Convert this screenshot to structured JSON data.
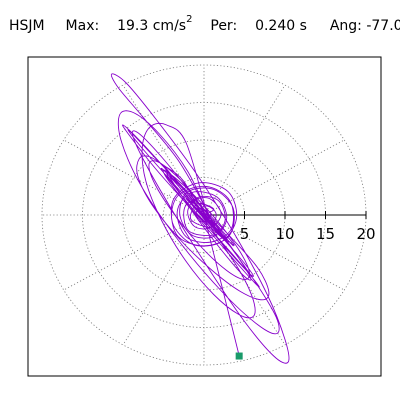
{
  "header": {
    "station": "HSJM",
    "max_label": "Max:",
    "max_value": "19.3",
    "max_unit_base": "cm/s",
    "max_unit_exp": "2",
    "per_label": "Per:",
    "per_value": "0.240 s",
    "ang_label": "Ang:",
    "ang_value": "-77.0"
  },
  "chart_data": {
    "type": "line",
    "subtype": "polar-particle-motion",
    "title": "",
    "radial_ticks": [
      {
        "value": 5,
        "label": "5"
      },
      {
        "value": 10,
        "label": "10"
      },
      {
        "value": 15,
        "label": "15"
      },
      {
        "value": 20,
        "label": "20"
      }
    ],
    "radial_range": [
      0,
      20
    ],
    "grid": true,
    "series_color": "#8800cc",
    "marker_color": "#1a9a6a",
    "angle_marker_deg": -77.0,
    "max_marker_radius": 19.3,
    "path": [
      [
        0,
        0
      ],
      [
        1.2,
        0.8
      ],
      [
        -0.8,
        1.5
      ],
      [
        -1.6,
        -0.6
      ],
      [
        0.9,
        -1.6
      ],
      [
        2.1,
        0.3
      ],
      [
        0.4,
        2.3
      ],
      [
        -2.3,
        1.2
      ],
      [
        -1.9,
        -2.1
      ],
      [
        1.4,
        -2.6
      ],
      [
        2.8,
        -0.4
      ],
      [
        1.6,
        2.4
      ],
      [
        -1.5,
        3.0
      ],
      [
        -3.3,
        0.5
      ],
      [
        -2.2,
        -2.9
      ],
      [
        0.9,
        -3.6
      ],
      [
        3.4,
        -1.8
      ],
      [
        3.2,
        1.9
      ],
      [
        0.3,
        3.8
      ],
      [
        -3.2,
        2.6
      ],
      [
        -3.9,
        -1.0
      ],
      [
        -1.4,
        -3.9
      ],
      [
        2.1,
        -3.6
      ],
      [
        4.0,
        -0.5
      ],
      [
        3.0,
        3.1
      ],
      [
        -0.6,
        4.3
      ],
      [
        -3.8,
        2.0
      ],
      [
        -3.4,
        -2.6
      ],
      [
        -0.1,
        -4.1
      ],
      [
        3.1,
        -2.8
      ],
      [
        3.6,
        0.9
      ],
      [
        1.2,
        3.4
      ],
      [
        -2.0,
        3.1
      ],
      [
        -3.0,
        0.2
      ],
      [
        -1.6,
        -2.6
      ],
      [
        1.1,
        -2.9
      ],
      [
        2.6,
        -0.7
      ],
      [
        1.8,
        1.9
      ],
      [
        -0.6,
        2.4
      ],
      [
        -2.0,
        0.6
      ],
      [
        -1.2,
        -1.5
      ],
      [
        0.7,
        -1.7
      ],
      [
        1.5,
        0.1
      ],
      [
        0.4,
        1.2
      ],
      [
        -0.9,
        0.5
      ],
      [
        -0.6,
        -0.8
      ],
      [
        0.5,
        -0.7
      ],
      [
        0.8,
        0.3
      ],
      [
        0.0,
        0.6
      ],
      [
        -0.3,
        0.0
      ],
      [
        -2.5,
        4.5
      ],
      [
        -4.8,
        6.5
      ],
      [
        -6.8,
        7.8
      ],
      [
        -8.0,
        7.5
      ],
      [
        -8.2,
        5.3
      ],
      [
        -6.5,
        1.5
      ],
      [
        -3.2,
        -3.0
      ],
      [
        0.8,
        -7.2
      ],
      [
        4.5,
        -10.2
      ],
      [
        7.2,
        -11.3
      ],
      [
        8.0,
        -10.2
      ],
      [
        6.6,
        -7.0
      ],
      [
        3.0,
        -2.6
      ],
      [
        -1.8,
        2.8
      ],
      [
        -6.2,
        7.8
      ],
      [
        -8.8,
        10.8
      ],
      [
        -9.3,
        11.2
      ],
      [
        -7.4,
        8.6
      ],
      [
        -3.6,
        4.0
      ],
      [
        0.6,
        -1.0
      ],
      [
        4.2,
        -5.4
      ],
      [
        6.0,
        -7.9
      ],
      [
        5.6,
        -7.8
      ],
      [
        3.2,
        -5.0
      ],
      [
        -0.3,
        -0.6
      ],
      [
        -3.5,
        3.6
      ],
      [
        -5.2,
        6.0
      ],
      [
        -4.8,
        5.8
      ],
      [
        -2.6,
        3.2
      ],
      [
        0.2,
        -0.2
      ],
      [
        2.6,
        -3.0
      ],
      [
        3.6,
        -4.1
      ],
      [
        2.8,
        -3.2
      ],
      [
        0.8,
        -1.0
      ],
      [
        -1.2,
        1.1
      ],
      [
        -2.2,
        2.2
      ],
      [
        -1.8,
        1.7
      ],
      [
        -0.4,
        0.3
      ],
      [
        1.0,
        -0.9
      ],
      [
        1.5,
        -1.2
      ],
      [
        0.8,
        -0.5
      ],
      [
        -2.0,
        5.8
      ],
      [
        -5.5,
        10.8
      ],
      [
        -8.6,
        13.6
      ],
      [
        -10.4,
        13.4
      ],
      [
        -10.2,
        9.8
      ],
      [
        -7.6,
        3.6
      ],
      [
        -3.0,
        -3.6
      ],
      [
        2.2,
        -10.2
      ],
      [
        6.6,
        -14.6
      ],
      [
        9.0,
        -15.8
      ],
      [
        8.9,
        -13.6
      ],
      [
        6.0,
        -8.4
      ],
      [
        1.4,
        -1.6
      ],
      [
        -3.8,
        5.0
      ],
      [
        -8.0,
        10.0
      ],
      [
        -10.0,
        12.0
      ],
      [
        -9.2,
        10.6
      ],
      [
        -6.0,
        6.2
      ],
      [
        -1.4,
        0.6
      ],
      [
        3.0,
        -4.6
      ],
      [
        6.0,
        -8.4
      ],
      [
        6.8,
        -9.6
      ],
      [
        5.2,
        -7.8
      ],
      [
        1.8,
        -3.6
      ],
      [
        -1.8,
        1.0
      ],
      [
        -4.4,
        4.6
      ],
      [
        -5.0,
        6.0
      ],
      [
        -3.6,
        4.8
      ],
      [
        -0.8,
        1.6
      ],
      [
        2.0,
        -1.8
      ],
      [
        3.6,
        -3.8
      ],
      [
        3.4,
        -3.8
      ],
      [
        1.6,
        -2.0
      ],
      [
        -0.6,
        0.4
      ],
      [
        -2.0,
        2.0
      ],
      [
        -2.0,
        2.0
      ],
      [
        -0.8,
        0.8
      ],
      [
        0.6,
        -0.6
      ],
      [
        1.2,
        -1.2
      ],
      [
        -3.0,
        7.0
      ],
      [
        -7.5,
        13.0
      ],
      [
        -10.6,
        17.0
      ],
      [
        -11.4,
        18.8
      ],
      [
        -9.6,
        17.6
      ],
      [
        -5.8,
        12.6
      ],
      [
        -1.0,
        5.6
      ],
      [
        3.8,
        -2.6
      ],
      [
        7.8,
        -10.6
      ],
      [
        10.0,
        -16.6
      ],
      [
        10.4,
        -19.6
      ],
      [
        8.6,
        -18.8
      ],
      [
        5.0,
        -14.2
      ],
      [
        0.6,
        -7.2
      ],
      [
        -3.8,
        0.4
      ],
      [
        -7.2,
        6.8
      ],
      [
        -8.8,
        10.6
      ],
      [
        -8.2,
        11.0
      ],
      [
        -5.6,
        8.2
      ],
      [
        -1.8,
        3.2
      ],
      [
        2.0,
        -2.2
      ],
      [
        4.8,
        -6.6
      ],
      [
        5.8,
        -8.6
      ],
      [
        4.8,
        -8.0
      ],
      [
        2.4,
        -5.0
      ],
      [
        -0.6,
        -0.8
      ],
      [
        -3.0,
        3.0
      ],
      [
        -4.2,
        5.0
      ],
      [
        -3.8,
        4.8
      ],
      [
        -2.0,
        2.8
      ],
      [
        0.2,
        0.0
      ],
      [
        1.8,
        -2.2
      ],
      [
        2.4,
        -3.0
      ],
      [
        1.8,
        -2.4
      ],
      [
        0.4,
        -0.8
      ],
      [
        -0.8,
        0.6
      ],
      [
        -1.4,
        1.2
      ],
      [
        -1.0,
        1.0
      ],
      [
        -0.2,
        0.2
      ],
      [
        0.4,
        -0.4
      ],
      [
        -1.5,
        3.0
      ],
      [
        -4.0,
        5.8
      ],
      [
        -6.0,
        7.2
      ],
      [
        -6.8,
        6.6
      ],
      [
        -6.0,
        4.0
      ],
      [
        -3.6,
        0.0
      ],
      [
        -0.4,
        -4.2
      ],
      [
        2.8,
        -7.4
      ],
      [
        5.0,
        -8.6
      ],
      [
        5.6,
        -7.6
      ],
      [
        4.4,
        -4.8
      ],
      [
        1.8,
        -1.0
      ],
      [
        -1.2,
        2.6
      ],
      [
        -3.6,
        5.0
      ],
      [
        -4.6,
        5.6
      ],
      [
        -4.0,
        4.4
      ],
      [
        -2.2,
        1.8
      ],
      [
        0.2,
        -1.0
      ],
      [
        2.2,
        -3.0
      ],
      [
        3.0,
        -3.6
      ],
      [
        2.6,
        -2.8
      ],
      [
        1.2,
        -1.0
      ],
      [
        -0.4,
        0.8
      ],
      [
        -1.6,
        1.8
      ],
      [
        -1.8,
        1.8
      ],
      [
        -1.2,
        1.0
      ],
      [
        -0.2,
        -0.2
      ],
      [
        0.6,
        -1.0
      ],
      [
        1.0,
        -1.0
      ],
      [
        0.6,
        -0.6
      ],
      [
        -2.2,
        9.6
      ],
      [
        -4.6,
        12.0
      ],
      [
        -6.6,
        11.8
      ],
      [
        -7.6,
        9.2
      ],
      [
        -7.2,
        4.6
      ],
      [
        -5.2,
        -0.8
      ],
      [
        -2.2,
        -6.2
      ],
      [
        1.2,
        -10.6
      ],
      [
        4.2,
        -13.2
      ],
      [
        6.0,
        -13.6
      ],
      [
        6.2,
        -11.8
      ],
      [
        4.8,
        -8.2
      ],
      [
        2.2,
        -3.8
      ],
      [
        -0.8,
        0.6
      ],
      [
        -3.4,
        4.2
      ],
      [
        -4.8,
        6.2
      ],
      [
        -4.8,
        6.4
      ],
      [
        -3.6,
        4.8
      ],
      [
        -1.6,
        2.2
      ],
      [
        0.4,
        -0.6
      ],
      [
        2.0,
        -2.6
      ],
      [
        2.6,
        -3.4
      ],
      [
        2.2,
        -3.0
      ],
      [
        1.0,
        -1.6
      ],
      [
        -0.4,
        0.0
      ],
      [
        -1.4,
        1.2
      ],
      [
        -1.6,
        1.6
      ],
      [
        -1.0,
        1.0
      ],
      [
        -0.2,
        0.2
      ],
      [
        0.4,
        -0.4
      ],
      [
        0.6,
        -0.6
      ],
      [
        0.2,
        -0.2
      ],
      [
        -0.2,
        0.2
      ],
      [
        0.0,
        0.0
      ],
      [
        4.4,
        -19.0
      ]
    ]
  }
}
